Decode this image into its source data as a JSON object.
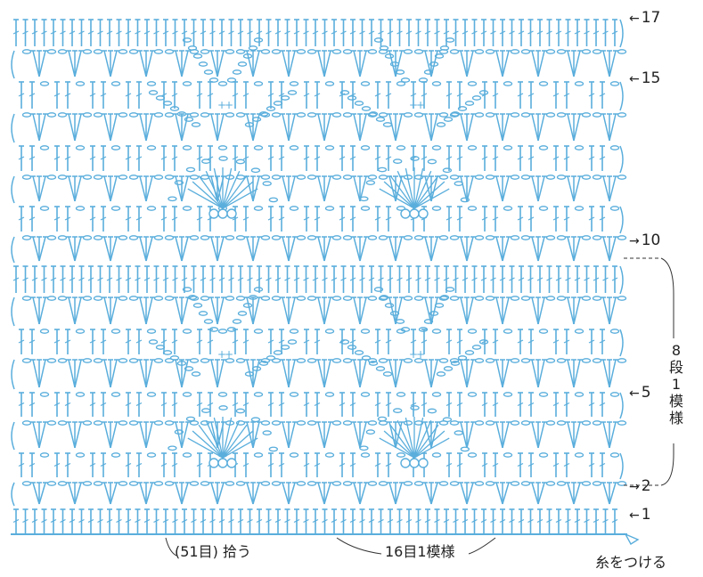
{
  "row_labels": [
    {
      "text": "17",
      "arrow": "←"
    },
    {
      "text": "15",
      "arrow": "←"
    },
    {
      "text": "10",
      "arrow": "→"
    },
    {
      "text": "5",
      "arrow": "←"
    },
    {
      "text": "2",
      "arrow": "→"
    },
    {
      "text": "1",
      "arrow": "←"
    }
  ],
  "repeat_rows": {
    "chars": [
      "8",
      "段",
      "1",
      "模",
      "様"
    ]
  },
  "bottom": {
    "pickup": "(51目) 拾う",
    "repeat": "16目1模様",
    "start": "糸をつける"
  },
  "colors": {
    "stitch": "#5aaedc",
    "text": "#222222",
    "guide": "#333333"
  }
}
